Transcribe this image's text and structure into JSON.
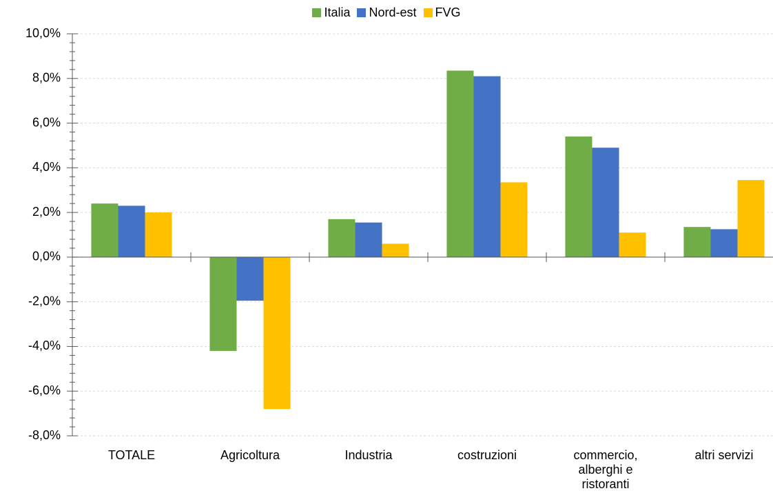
{
  "chart_data": {
    "type": "bar",
    "categories": [
      "TOTALE",
      "Agricoltura",
      "Industria",
      "costruzioni",
      "commercio, alberghi e ristoranti",
      "altri servizi"
    ],
    "series": [
      {
        "name": "Italia",
        "color": "#70ad47",
        "values": [
          2.4,
          -4.2,
          1.7,
          8.35,
          5.4,
          1.35
        ]
      },
      {
        "name": "Nord-est",
        "color": "#4472c4",
        "values": [
          2.3,
          -1.95,
          1.55,
          8.1,
          4.9,
          1.25
        ]
      },
      {
        "name": "FVG",
        "color": "#ffc000",
        "values": [
          2.0,
          -6.8,
          0.6,
          3.35,
          1.1,
          3.45
        ]
      }
    ],
    "ylim": [
      -8,
      10
    ],
    "yticks": [
      {
        "value": -8,
        "label": "-8,0%"
      },
      {
        "value": -6,
        "label": "-6,0%"
      },
      {
        "value": -4,
        "label": "-4,0%"
      },
      {
        "value": -2,
        "label": "-2,0%"
      },
      {
        "value": 0,
        "label": "0,0%"
      },
      {
        "value": 2,
        "label": "2,0%"
      },
      {
        "value": 4,
        "label": "4,0%"
      },
      {
        "value": 6,
        "label": "6,0%"
      },
      {
        "value": 8,
        "label": "8,0%"
      },
      {
        "value": 10,
        "label": "10,0%"
      }
    ],
    "grid": true,
    "legend": "top"
  }
}
